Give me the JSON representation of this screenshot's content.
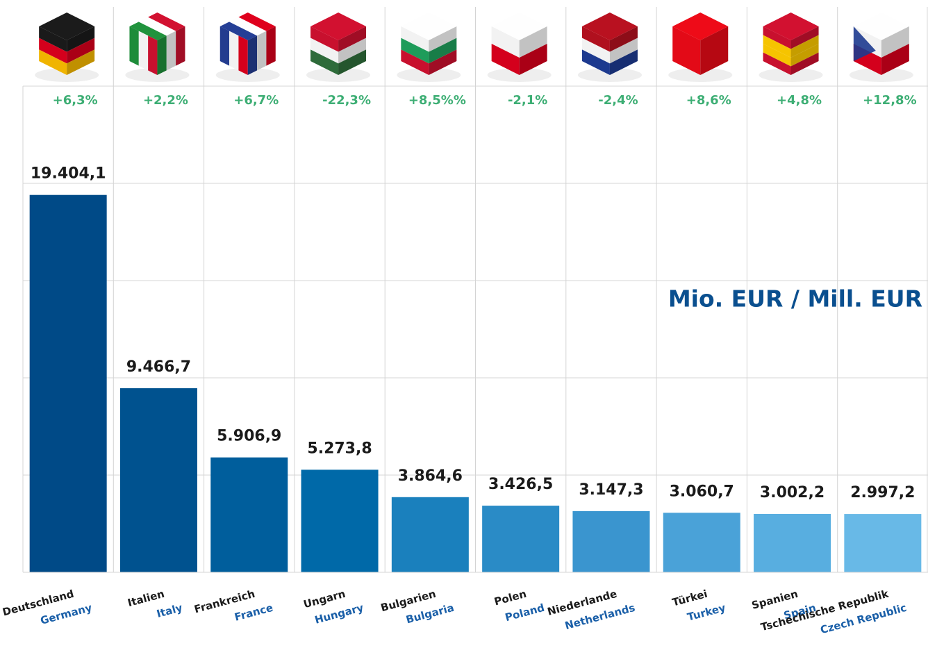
{
  "chart_data": {
    "type": "bar",
    "annotation": "Mio. EUR / Mill. EUR",
    "categories": [
      "Deutschland",
      "Italien",
      "Frankreich",
      "Ungarn",
      "Bulgarien",
      "Polen",
      "Niederlande",
      "Türkei",
      "Spanien",
      "Tschechische Republik"
    ],
    "categories_en": [
      "Germany",
      "Italy",
      "France",
      "Hungary",
      "Bulgaria",
      "Poland",
      "Netherlands",
      "Turkey",
      "Spain",
      "Czech Republic"
    ],
    "values": [
      19404.1,
      9466.7,
      5906.9,
      5273.8,
      3864.6,
      3426.5,
      3147.3,
      3060.7,
      3002.2,
      2997.2
    ],
    "value_labels": [
      "19.404,1",
      "9.466,7",
      "5.906,9",
      "5.273,8",
      "3.864,6",
      "3.426,5",
      "3.147,3",
      "3.060,7",
      "3.002,2",
      "2.997,2"
    ],
    "changes": [
      "+6,3%",
      "+2,2%",
      "+6,7%",
      "-22,3%",
      "+8,5%%",
      "-2,1%",
      "-2,4%",
      "+8,6%",
      "+4,8%",
      "+12,8%"
    ],
    "colors": [
      "#004a87",
      "#00528f",
      "#005e9c",
      "#0069a8",
      "#1a80bd",
      "#2a8bc6",
      "#3a95cf",
      "#4aa2d8",
      "#58aee0",
      "#68b9e7"
    ],
    "ylim": [
      0,
      25000
    ],
    "yticks": [
      0,
      5000,
      10000,
      15000,
      20000,
      25000
    ],
    "grid": true
  }
}
